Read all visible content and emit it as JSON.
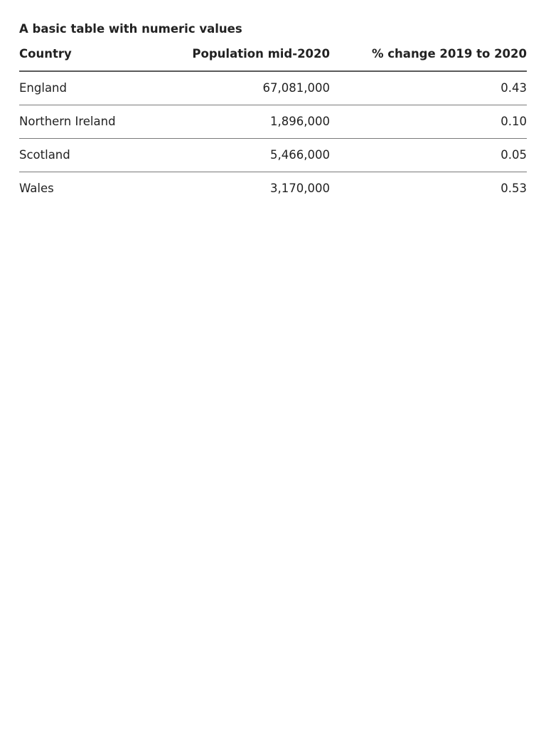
{
  "table": {
    "caption": "A basic table with numeric values",
    "headers": [
      "Country",
      "Population mid-2020",
      "% change 2019 to 2020"
    ],
    "rows": [
      {
        "country": "England",
        "population": "67,081,000",
        "change": "0.43"
      },
      {
        "country": "Northern Ireland",
        "population": "1,896,000",
        "change": "0.10"
      },
      {
        "country": "Scotland",
        "population": "5,466,000",
        "change": "0.05"
      },
      {
        "country": "Wales",
        "population": "3,170,000",
        "change": "0.53"
      }
    ]
  }
}
